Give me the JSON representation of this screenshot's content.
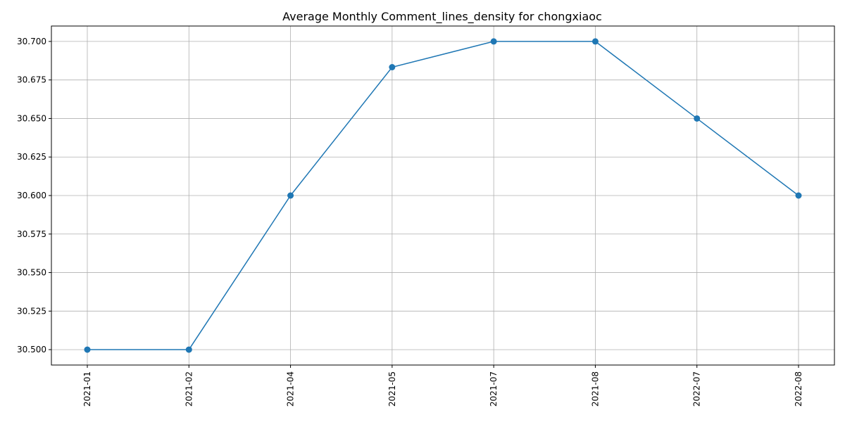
{
  "chart_data": {
    "type": "line",
    "title": "Average Monthly Comment_lines_density for chongxiaoc",
    "xlabel": "",
    "ylabel": "",
    "categories": [
      "2021-01",
      "2021-02",
      "2021-04",
      "2021-05",
      "2021-07",
      "2021-08",
      "2022-07",
      "2022-08"
    ],
    "series": [
      {
        "values": [
          30.5,
          30.5,
          30.6,
          30.6833,
          30.7,
          30.7,
          30.65,
          30.6
        ],
        "color": "#1f77b4",
        "marker": "circle"
      }
    ],
    "ylim": [
      30.49,
      30.71
    ],
    "yticks": [
      "30.500",
      "30.525",
      "30.550",
      "30.575",
      "30.600",
      "30.625",
      "30.650",
      "30.675",
      "30.700"
    ],
    "grid": true,
    "legend": "none",
    "xtick_rotation": "vertical"
  }
}
